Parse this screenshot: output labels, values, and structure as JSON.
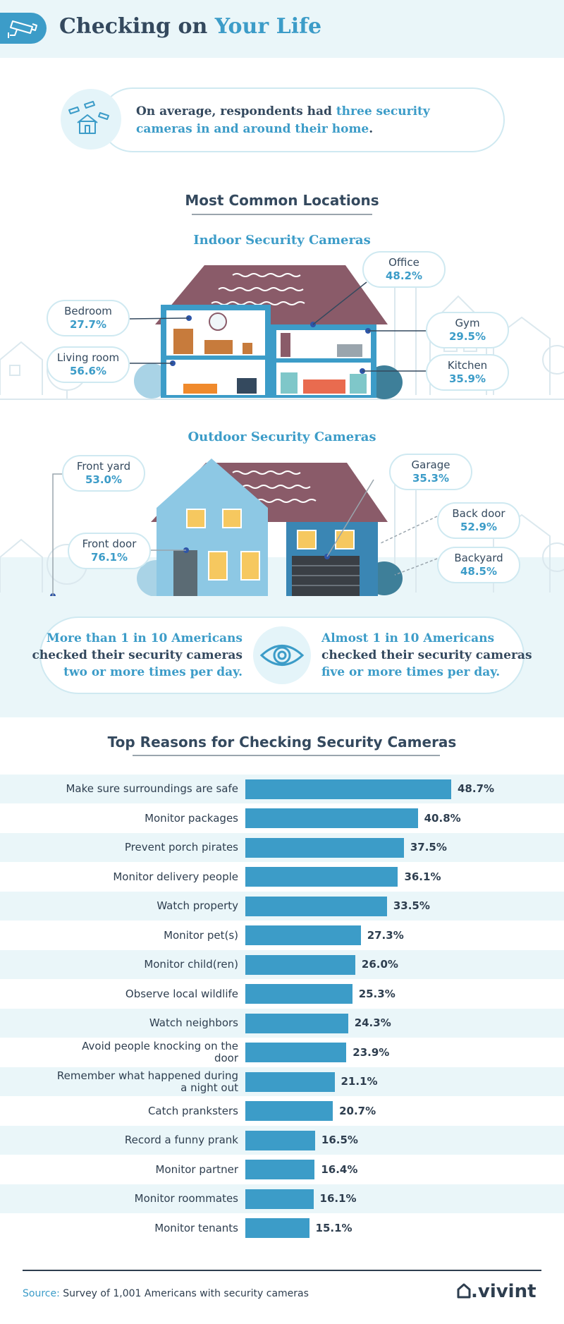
{
  "header": {
    "title_part1": "Checking on ",
    "title_part2": "Your Life",
    "icon": "security-camera-icon"
  },
  "intro": {
    "text_part1": "On average, respondents had ",
    "text_highlight": "three security cameras in and around their home",
    "text_part2": ".",
    "icon": "house-cameras-icon"
  },
  "locations": {
    "title": "Most Common Locations",
    "indoor": {
      "title": "Indoor Security Cameras",
      "items": [
        {
          "label": "Bedroom",
          "value": "27.7%"
        },
        {
          "label": "Living room",
          "value": "56.6%"
        },
        {
          "label": "Office",
          "value": "48.2%"
        },
        {
          "label": "Gym",
          "value": "29.5%"
        },
        {
          "label": "Kitchen",
          "value": "35.9%"
        }
      ]
    },
    "outdoor": {
      "title": "Outdoor Security Cameras",
      "items": [
        {
          "label": "Front yard",
          "value": "53.0%"
        },
        {
          "label": "Front door",
          "value": "76.1%"
        },
        {
          "label": "Garage",
          "value": "35.3%"
        },
        {
          "label": "Back door",
          "value": "52.9%"
        },
        {
          "label": "Backyard",
          "value": "48.5%"
        }
      ]
    }
  },
  "stats": {
    "left": {
      "line1": "More than 1 in 10 Americans",
      "line2": "checked their security cameras",
      "line3": "two or more times per day."
    },
    "right": {
      "line1": "Almost 1 in 10 Americans",
      "line2": "checked their security cameras",
      "line3": "five or more times per day."
    },
    "icon": "eye-icon"
  },
  "chart_data": {
    "type": "bar",
    "orientation": "horizontal",
    "title": "Top Reasons for Checking Security Cameras",
    "categories": [
      "Make sure surroundings are safe",
      "Monitor packages",
      "Prevent porch pirates",
      "Monitor delivery people",
      "Watch property",
      "Monitor pet(s)",
      "Monitor child(ren)",
      "Observe local wildlife",
      "Watch neighbors",
      "Avoid people knocking on the door",
      "Remember what happened during a night out",
      "Catch pranksters",
      "Record a funny prank",
      "Monitor partner",
      "Monitor roommates",
      "Monitor tenants"
    ],
    "values": [
      48.7,
      40.8,
      37.5,
      36.1,
      33.5,
      27.3,
      26.0,
      25.3,
      24.3,
      23.9,
      21.1,
      20.7,
      16.5,
      16.4,
      16.1,
      15.1
    ],
    "value_labels": [
      "48.7%",
      "40.8%",
      "37.5%",
      "36.1%",
      "33.5%",
      "27.3%",
      "26.0%",
      "25.3%",
      "24.3%",
      "23.9%",
      "21.1%",
      "20.7%",
      "16.5%",
      "16.4%",
      "16.1%",
      "15.1%"
    ],
    "xlabel": "",
    "ylabel": "",
    "bar_color": "#3c9cc8",
    "grid": false,
    "alternating_row_shading": true
  },
  "footer": {
    "source_label": "Source:",
    "source_text": " Survey of 1,001 Americans with security cameras",
    "brand": ".vivint",
    "brand_icon": "vivint-house-logo-icon"
  }
}
